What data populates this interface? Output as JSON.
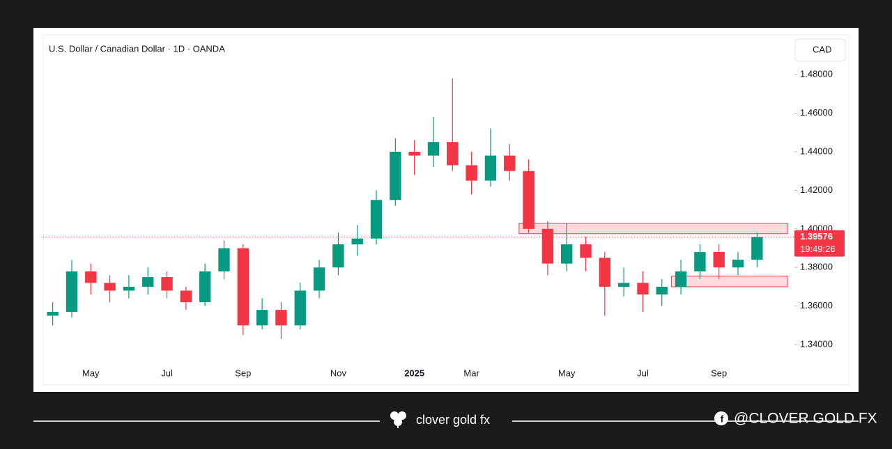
{
  "chart_data": {
    "type": "candlestick",
    "title": "U.S. Dollar / Canadian Dollar · 1D · OANDA",
    "currency": "CAD",
    "categories": [
      null,
      null,
      "May",
      null,
      null,
      null,
      "Jul",
      null,
      null,
      null,
      "Sep",
      null,
      null,
      null,
      null,
      "Nov",
      null,
      null,
      null,
      "2025",
      null,
      null,
      "Mar",
      null,
      null,
      null,
      null,
      "May",
      null,
      null,
      null,
      "Jul",
      null,
      null,
      null,
      "Sep",
      null,
      null
    ],
    "open": [
      1.355,
      1.357,
      1.378,
      1.372,
      1.368,
      1.37,
      1.375,
      1.368,
      1.362,
      1.378,
      1.39,
      1.35,
      1.358,
      1.35,
      1.368,
      1.38,
      1.392,
      1.395,
      1.415,
      1.44,
      1.438,
      1.445,
      1.433,
      1.425,
      1.438,
      1.43,
      1.4,
      1.382,
      1.392,
      1.385,
      1.37,
      1.372,
      1.366,
      1.37,
      1.378,
      1.388,
      1.38,
      1.384
    ],
    "high": [
      1.362,
      1.384,
      1.382,
      1.376,
      1.376,
      1.38,
      1.378,
      1.37,
      1.382,
      1.394,
      1.392,
      1.364,
      1.362,
      1.372,
      1.384,
      1.398,
      1.402,
      1.42,
      1.447,
      1.446,
      1.458,
      1.478,
      1.44,
      1.452,
      1.444,
      1.436,
      1.404,
      1.403,
      1.396,
      1.388,
      1.38,
      1.378,
      1.374,
      1.384,
      1.392,
      1.392,
      1.388,
      1.398
    ],
    "low": [
      1.35,
      1.354,
      1.366,
      1.362,
      1.364,
      1.366,
      1.364,
      1.358,
      1.36,
      1.374,
      1.345,
      1.348,
      1.343,
      1.348,
      1.364,
      1.376,
      1.386,
      1.392,
      1.412,
      1.428,
      1.432,
      1.43,
      1.418,
      1.422,
      1.425,
      1.398,
      1.376,
      1.378,
      1.378,
      1.355,
      1.365,
      1.357,
      1.36,
      1.366,
      1.374,
      1.374,
      1.376,
      1.38
    ],
    "close": [
      1.357,
      1.378,
      1.372,
      1.368,
      1.37,
      1.375,
      1.368,
      1.362,
      1.378,
      1.39,
      1.35,
      1.358,
      1.35,
      1.368,
      1.38,
      1.392,
      1.395,
      1.415,
      1.44,
      1.438,
      1.445,
      1.433,
      1.425,
      1.438,
      1.43,
      1.4,
      1.382,
      1.392,
      1.385,
      1.37,
      1.372,
      1.366,
      1.37,
      1.378,
      1.388,
      1.38,
      1.384,
      1.3958
    ],
    "up_color": "#089981",
    "down_color": "#f23645",
    "zones": [
      {
        "from": 25,
        "low": 1.3975,
        "high": 1.403,
        "color": "#f23645"
      },
      {
        "from": 33,
        "low": 1.37,
        "high": 1.3755,
        "color": "#f23645"
      }
    ],
    "ylim": [
      1.331,
      1.488
    ],
    "yticks": [
      {
        "value": 1.34,
        "label": "1.34000"
      },
      {
        "value": 1.36,
        "label": "1.36000"
      },
      {
        "value": 1.38,
        "label": "1.38000"
      },
      {
        "value": 1.4,
        "label": "1.40000"
      },
      {
        "value": 1.42,
        "label": "1.42000"
      },
      {
        "value": 1.44,
        "label": "1.44000"
      },
      {
        "value": 1.46,
        "label": "1.46000"
      },
      {
        "value": 1.48,
        "label": "1.48000"
      }
    ],
    "last_price": {
      "value": 1.39576,
      "label": "1.39576"
    },
    "countdown": "19:49:26"
  },
  "footer": {
    "brand": "clover gold fx",
    "handle": "@CLOVER GOLD FX"
  }
}
